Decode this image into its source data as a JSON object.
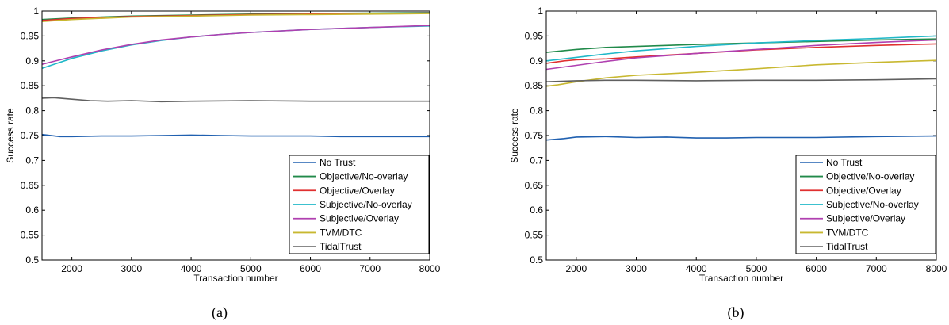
{
  "chart_data": [
    {
      "type": "line",
      "caption": "(a)",
      "xlabel": "Transaction number",
      "ylabel": "Success rate",
      "xlim": [
        1500,
        8000
      ],
      "ylim": [
        0.5,
        1
      ],
      "xticks": [
        "2000",
        "3000",
        "4000",
        "5000",
        "6000",
        "7000",
        "8000"
      ],
      "yticks": [
        "0.5",
        "0.55",
        "0.6",
        "0.65",
        "0.7",
        "0.75",
        "0.8",
        "0.85",
        "0.9",
        "0.95",
        "1"
      ],
      "legend_position": "bottom-right",
      "series": [
        {
          "name": "No Trust",
          "color": "#2060b0",
          "x": [
            1500,
            1800,
            2000,
            2500,
            3000,
            3500,
            4000,
            4500,
            5000,
            5500,
            6000,
            6500,
            7000,
            7500,
            8000
          ],
          "y": [
            0.752,
            0.748,
            0.748,
            0.749,
            0.749,
            0.75,
            0.751,
            0.75,
            0.749,
            0.749,
            0.749,
            0.748,
            0.748,
            0.748,
            0.748
          ]
        },
        {
          "name": "Objective/No-overlay",
          "color": "#218a4a",
          "x": [
            1500,
            2000,
            3000,
            4000,
            5000,
            6000,
            7000,
            8000
          ],
          "y": [
            0.983,
            0.986,
            0.99,
            0.992,
            0.994,
            0.995,
            0.996,
            0.997
          ]
        },
        {
          "name": "Objective/Overlay",
          "color": "#e03030",
          "x": [
            1500,
            2000,
            3000,
            4000,
            5000,
            6000,
            7000,
            8000
          ],
          "y": [
            0.981,
            0.985,
            0.989,
            0.991,
            0.993,
            0.994,
            0.995,
            0.996
          ]
        },
        {
          "name": "Subjective/No-overlay",
          "color": "#20b8c8",
          "x": [
            1500,
            1700,
            2000,
            2500,
            3000,
            3500,
            4000,
            4500,
            5000,
            6000,
            7000,
            8000
          ],
          "y": [
            0.885,
            0.893,
            0.905,
            0.92,
            0.932,
            0.941,
            0.948,
            0.953,
            0.957,
            0.963,
            0.967,
            0.97
          ]
        },
        {
          "name": "Subjective/Overlay",
          "color": "#b040b0",
          "x": [
            1500,
            1700,
            2000,
            2500,
            3000,
            3500,
            4000,
            4500,
            5000,
            6000,
            7000,
            8000
          ],
          "y": [
            0.893,
            0.899,
            0.908,
            0.922,
            0.933,
            0.942,
            0.948,
            0.953,
            0.957,
            0.963,
            0.967,
            0.971
          ]
        },
        {
          "name": "TVM/DTC",
          "color": "#c8b830",
          "x": [
            1500,
            2000,
            3000,
            4000,
            5000,
            6000,
            7000,
            8000
          ],
          "y": [
            0.979,
            0.983,
            0.988,
            0.99,
            0.992,
            0.993,
            0.994,
            0.995
          ]
        },
        {
          "name": "TidalTrust",
          "color": "#606060",
          "x": [
            1500,
            1700,
            2000,
            2300,
            2600,
            3000,
            3500,
            4000,
            5000,
            6000,
            7000,
            8000
          ],
          "y": [
            0.825,
            0.826,
            0.823,
            0.82,
            0.819,
            0.82,
            0.818,
            0.819,
            0.82,
            0.819,
            0.819,
            0.819
          ]
        }
      ]
    },
    {
      "type": "line",
      "caption": "(b)",
      "xlabel": "Transaction number",
      "ylabel": "Success rate",
      "xlim": [
        1500,
        8000
      ],
      "ylim": [
        0.5,
        1
      ],
      "xticks": [
        "2000",
        "3000",
        "4000",
        "5000",
        "6000",
        "7000",
        "8000"
      ],
      "yticks": [
        "0.5",
        "0.55",
        "0.6",
        "0.65",
        "0.7",
        "0.75",
        "0.8",
        "0.85",
        "0.9",
        "0.95",
        "1"
      ],
      "legend_position": "bottom-right",
      "series": [
        {
          "name": "No Trust",
          "color": "#2060b0",
          "x": [
            1500,
            1800,
            2000,
            2500,
            3000,
            3500,
            4000,
            4500,
            5000,
            6000,
            7000,
            8000
          ],
          "y": [
            0.741,
            0.744,
            0.747,
            0.748,
            0.746,
            0.747,
            0.745,
            0.745,
            0.746,
            0.746,
            0.748,
            0.749
          ]
        },
        {
          "name": "Objective/No-overlay",
          "color": "#218a4a",
          "x": [
            1500,
            2000,
            2500,
            3000,
            4000,
            5000,
            6000,
            7000,
            8000
          ],
          "y": [
            0.917,
            0.923,
            0.927,
            0.929,
            0.933,
            0.936,
            0.939,
            0.942,
            0.944
          ]
        },
        {
          "name": "Objective/Overlay",
          "color": "#e03030",
          "x": [
            1500,
            1800,
            2000,
            2500,
            3000,
            4000,
            5000,
            6000,
            7000,
            8000
          ],
          "y": [
            0.895,
            0.9,
            0.902,
            0.904,
            0.908,
            0.915,
            0.922,
            0.927,
            0.931,
            0.934
          ]
        },
        {
          "name": "Subjective/No-overlay",
          "color": "#20b8c8",
          "x": [
            1500,
            2000,
            2500,
            3000,
            4000,
            5000,
            6000,
            7000,
            8000
          ],
          "y": [
            0.9,
            0.907,
            0.914,
            0.92,
            0.929,
            0.936,
            0.941,
            0.945,
            0.95
          ]
        },
        {
          "name": "Subjective/Overlay",
          "color": "#b040b0",
          "x": [
            1500,
            2000,
            2500,
            3000,
            4000,
            5000,
            6000,
            7000,
            8000
          ],
          "y": [
            0.883,
            0.891,
            0.899,
            0.906,
            0.915,
            0.923,
            0.931,
            0.937,
            0.942
          ]
        },
        {
          "name": "TVM/DTC",
          "color": "#c8b830",
          "x": [
            1500,
            1700,
            2000,
            2500,
            3000,
            4000,
            5000,
            6000,
            7000,
            8000
          ],
          "y": [
            0.849,
            0.852,
            0.858,
            0.866,
            0.871,
            0.877,
            0.884,
            0.892,
            0.897,
            0.901
          ]
        },
        {
          "name": "TidalTrust",
          "color": "#606060",
          "x": [
            1500,
            2000,
            2500,
            3000,
            4000,
            5000,
            6000,
            7000,
            8000
          ],
          "y": [
            0.858,
            0.86,
            0.861,
            0.861,
            0.86,
            0.861,
            0.861,
            0.862,
            0.864
          ]
        }
      ]
    }
  ]
}
